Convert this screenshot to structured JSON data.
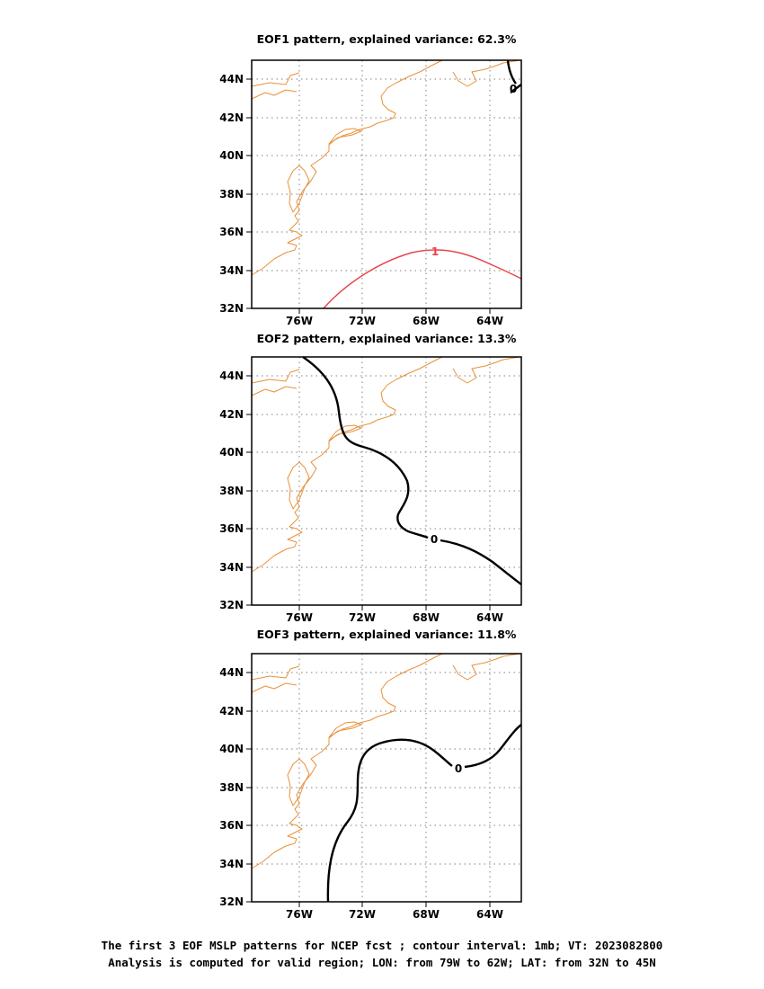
{
  "panels": [
    {
      "title": "EOF1 pattern, explained variance: 62.3%",
      "contour_label": "1",
      "contour_kind": "positive"
    },
    {
      "title": "EOF2 pattern, explained variance: 13.3%",
      "contour_label": "0",
      "contour_kind": "zero"
    },
    {
      "title": "EOF3 pattern, explained variance: 11.8%",
      "contour_label": "0",
      "contour_kind": "zero"
    }
  ],
  "lat_ticks": [
    "44N",
    "42N",
    "40N",
    "38N",
    "36N",
    "34N",
    "32N"
  ],
  "lon_ticks": [
    "76W",
    "72W",
    "68W",
    "64W"
  ],
  "caption": {
    "line1": "The first 3 EOF MSLP patterns for NCEP fcst ; contour interval: 1mb; VT: 2023082800",
    "line2": "Analysis is computed for valid region; LON: from 79W to 62W; LAT: from 32N to 45N"
  },
  "colors": {
    "coastline": "#e8913a",
    "positive_contour": "#e8454a",
    "zero_contour": "#000000",
    "grid": "#808080"
  },
  "map": {
    "lon_range": [
      -79,
      -62
    ],
    "lat_range": [
      32,
      45
    ],
    "grid_lon": [
      -76,
      -72,
      -68,
      -64
    ],
    "grid_lat": [
      34,
      36,
      38,
      40,
      42,
      44
    ]
  }
}
